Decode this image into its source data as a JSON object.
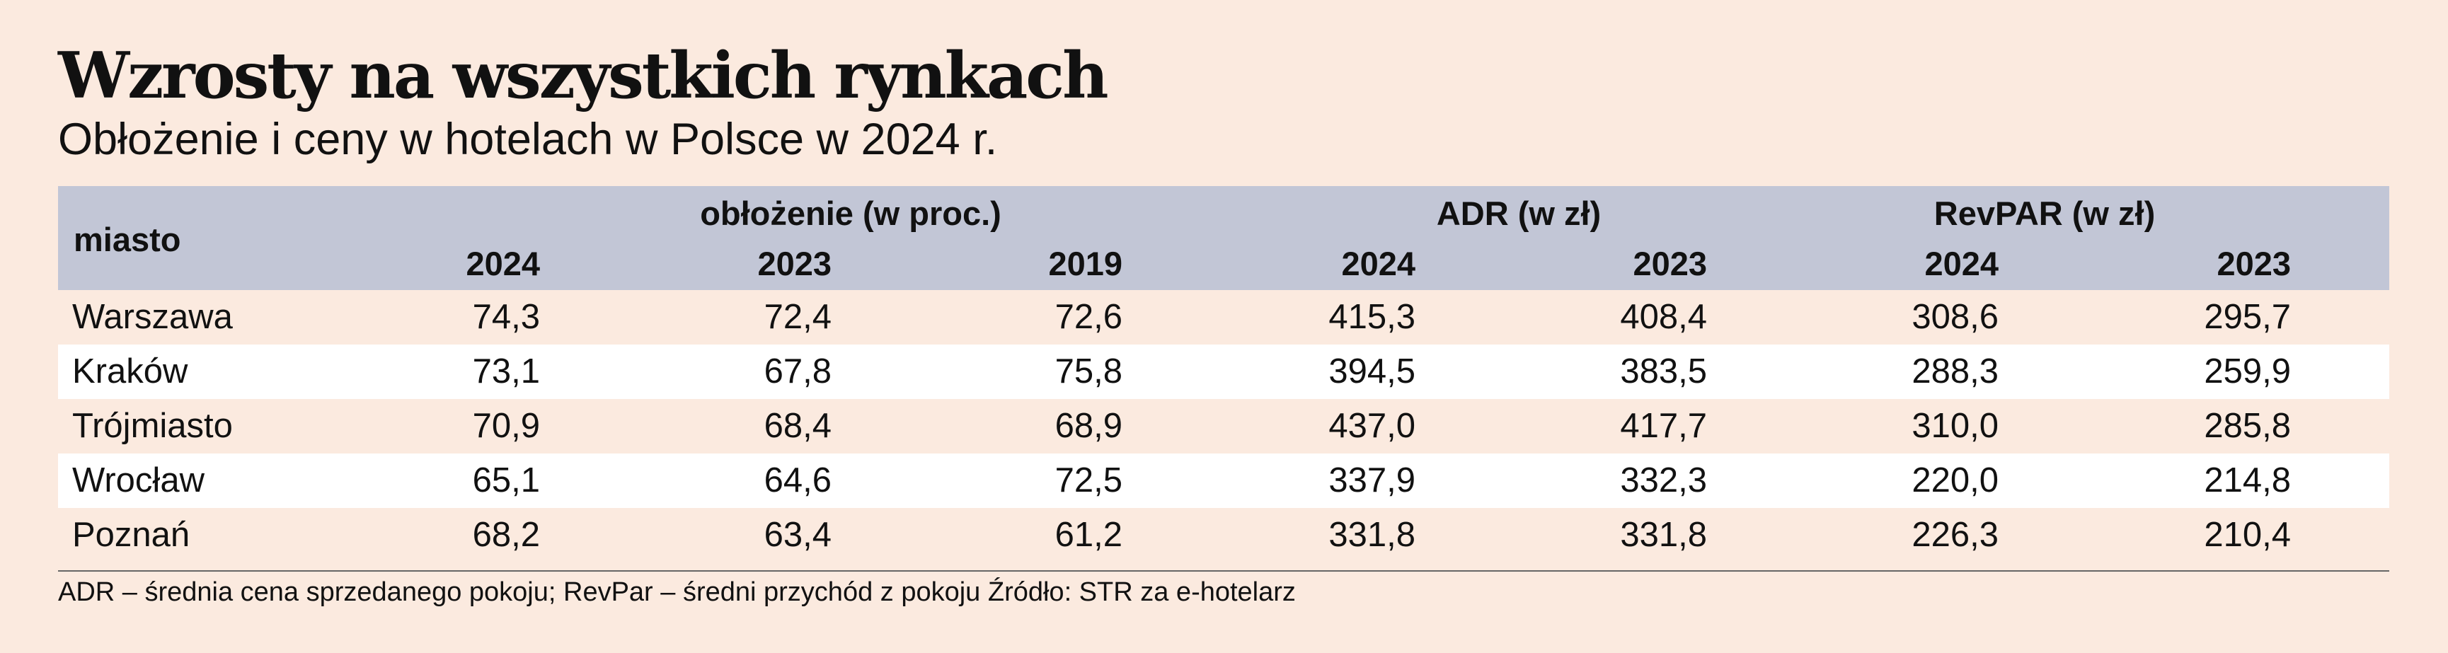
{
  "title": "Wzrosty na wszystkich rynkach",
  "subtitle": "Obłożenie i ceny w hotelach w Polsce w 2024 r.",
  "chart_data": {
    "type": "table",
    "header": {
      "city": "miasto",
      "groups": [
        "obłożenie (w proc.)",
        "ADR (w zł)",
        "RevPAR (w zł)"
      ],
      "years": [
        "2024",
        "2023",
        "2019",
        "2024",
        "2023",
        "2024",
        "2023"
      ]
    },
    "rows": [
      {
        "city": "Warszawa",
        "values": [
          "74,3",
          "72,4",
          "72,6",
          "415,3",
          "408,4",
          "308,6",
          "295,7"
        ]
      },
      {
        "city": "Kraków",
        "values": [
          "73,1",
          "67,8",
          "75,8",
          "394,5",
          "383,5",
          "288,3",
          "259,9"
        ]
      },
      {
        "city": "Trójmiasto",
        "values": [
          "70,9",
          "68,4",
          "68,9",
          "437,0",
          "417,7",
          "310,0",
          "285,8"
        ]
      },
      {
        "city": "Wrocław",
        "values": [
          "65,1",
          "64,6",
          "72,5",
          "337,9",
          "332,3",
          "220,0",
          "214,8"
        ]
      },
      {
        "city": "Poznań",
        "values": [
          "68,2",
          "63,4",
          "61,2",
          "331,8",
          "331,8",
          "226,3",
          "210,4"
        ]
      }
    ],
    "colors": {
      "header_background": "#c2c6d6",
      "band_background": "#fbeadf",
      "white_row": "#ffffff"
    }
  },
  "footnote": "ADR – średnia cena sprzedanego pokoju; RevPar – średni przychód z pokoju Źródło: STR za e-hotelarz"
}
